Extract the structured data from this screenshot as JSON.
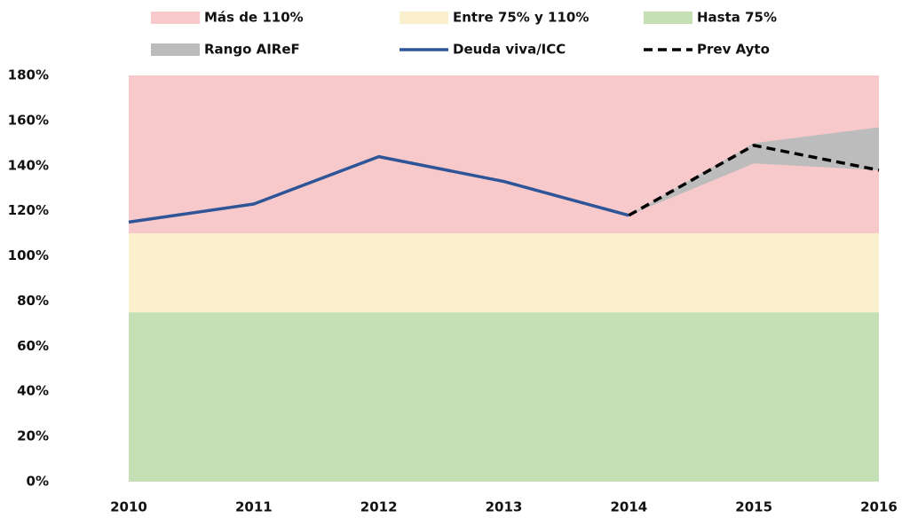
{
  "chart_data": {
    "type": "line",
    "categories": [
      "2010",
      "2011",
      "2012",
      "2013",
      "2014",
      "2015",
      "2016"
    ],
    "ylim": [
      0,
      180
    ],
    "yticks": [
      {
        "value": 0,
        "label": "0%"
      },
      {
        "value": 20,
        "label": "20%"
      },
      {
        "value": 40,
        "label": "40%"
      },
      {
        "value": 60,
        "label": "60%"
      },
      {
        "value": 80,
        "label": "80%"
      },
      {
        "value": 100,
        "label": "100%"
      },
      {
        "value": 120,
        "label": "120%"
      },
      {
        "value": 140,
        "label": "140%"
      },
      {
        "value": 160,
        "label": "160%"
      },
      {
        "value": 180,
        "label": "180%"
      }
    ],
    "bands": [
      {
        "name": "Más de 110%",
        "color": "#f8c9ca",
        "from": 110,
        "to": 180
      },
      {
        "name": "Entre 75% y 110%",
        "color": "#fbf0cd",
        "from": 75,
        "to": 110
      },
      {
        "name": "Hasta 75%",
        "color": "#c6e0b5",
        "from": 0,
        "to": 75
      }
    ],
    "range": {
      "name": "Rango AIReF",
      "color": "#bcbcbc",
      "low": [
        null,
        null,
        null,
        null,
        118,
        141,
        138
      ],
      "high": [
        null,
        null,
        null,
        null,
        118,
        150,
        157
      ]
    },
    "series": [
      {
        "name": "Deuda viva/ICC",
        "color": "#2e5597",
        "dashed": false,
        "values": [
          115,
          123,
          144,
          133,
          118,
          null,
          null
        ]
      },
      {
        "name": "Prev Ayto",
        "color": "#000000",
        "dashed": true,
        "values": [
          null,
          null,
          null,
          null,
          118,
          149,
          138
        ]
      }
    ]
  }
}
